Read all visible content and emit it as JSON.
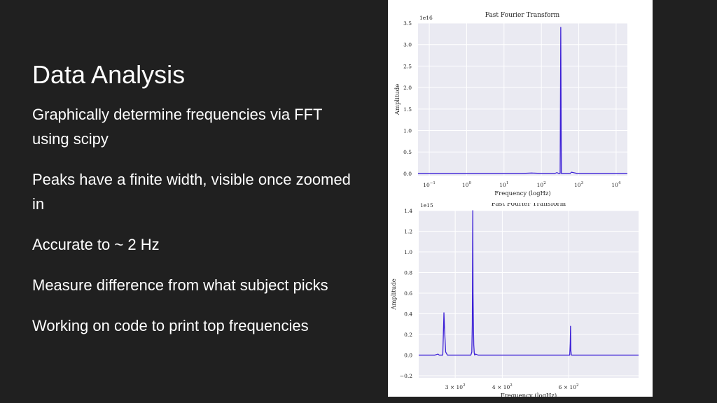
{
  "slide": {
    "title": "Data Analysis",
    "bullets": [
      "Graphically determine frequencies via FFT using scipy",
      "Peaks have a finite width, visible once zoomed in",
      "Accurate to ~ 2 Hz",
      "Measure difference from what subject picks",
      "Working on code to print top frequencies"
    ]
  },
  "colors": {
    "background": "#202020",
    "text": "#ffffff",
    "plot_bg": "#eaeaf2",
    "series": "#3b1fd6"
  },
  "chart_data": [
    {
      "type": "line",
      "title": "Fast Fourier Transform",
      "xlabel": "Frequency (logHz)",
      "ylabel": "Amplitude",
      "y_offset_label": "1e16",
      "xscale": "log",
      "xlim": [
        0.05,
        20000
      ],
      "ylim": [
        -0.05,
        3.5
      ],
      "yticks": [
        "0.0",
        "0.5",
        "1.0",
        "1.5",
        "2.0",
        "2.5",
        "3.0",
        "3.5"
      ],
      "xticks": [
        {
          "value": 0.1,
          "base": "10",
          "exp": "−1"
        },
        {
          "value": 1,
          "base": "10",
          "exp": "0"
        },
        {
          "value": 10,
          "base": "10",
          "exp": "1"
        },
        {
          "value": 100,
          "base": "10",
          "exp": "2"
        },
        {
          "value": 1000,
          "base": "10",
          "exp": "3"
        },
        {
          "value": 10000,
          "base": "10",
          "exp": "4"
        }
      ],
      "grid": true,
      "series": [
        {
          "x": [
            0.05,
            30,
            55,
            100,
            200,
            230,
            260,
            290,
            318,
            330,
            342,
            360,
            450,
            590,
            640,
            900,
            1800,
            5000,
            20000
          ],
          "y": [
            0.0,
            0.0,
            0.01,
            0.0,
            0.0,
            0.0,
            0.02,
            0.0,
            0.0,
            3.4,
            0.0,
            0.0,
            0.0,
            0.0,
            0.03,
            0.0,
            0.0,
            0.0,
            0.0
          ]
        }
      ]
    },
    {
      "type": "line",
      "title": "Fast Fourier Transform",
      "xlabel": "Frequency (logHz)",
      "ylabel": "Amplitude",
      "y_offset_label": "1e15",
      "xscale": "log",
      "xlim": [
        240,
        920
      ],
      "ylim": [
        -0.22,
        1.4
      ],
      "yticks": [
        "−0.2",
        "0.0",
        "0.2",
        "0.4",
        "0.6",
        "0.8",
        "1.0",
        "1.2",
        "1.4"
      ],
      "xticks": [
        {
          "value": 300,
          "base": "3 × 10",
          "exp": "2"
        },
        {
          "value": 400,
          "base": "4 × 10",
          "exp": "2"
        },
        {
          "value": 600,
          "base": "6 × 10",
          "exp": "2"
        }
      ],
      "grid": true,
      "series": [
        {
          "x": [
            240,
            265,
            270,
            272,
            278,
            279,
            280,
            281,
            283,
            286,
            300,
            320,
            330,
            332,
            333,
            334,
            334.5,
            335,
            336,
            337,
            338,
            340,
            345,
            360,
            400,
            450,
            500,
            560,
            604,
            606,
            607,
            608,
            610,
            650,
            700,
            800,
            920
          ],
          "y": [
            0.0,
            0.0,
            0.01,
            0.0,
            0.0,
            0.2,
            0.41,
            0.25,
            0.03,
            0.0,
            0.0,
            0.0,
            0.0,
            0.03,
            0.3,
            1.4,
            0.6,
            0.38,
            0.1,
            0.02,
            0.0,
            0.01,
            0.0,
            0.0,
            0.0,
            0.0,
            0.0,
            0.0,
            0.0,
            0.12,
            0.28,
            0.05,
            0.0,
            0.0,
            0.0,
            0.0,
            0.0
          ]
        }
      ]
    }
  ]
}
